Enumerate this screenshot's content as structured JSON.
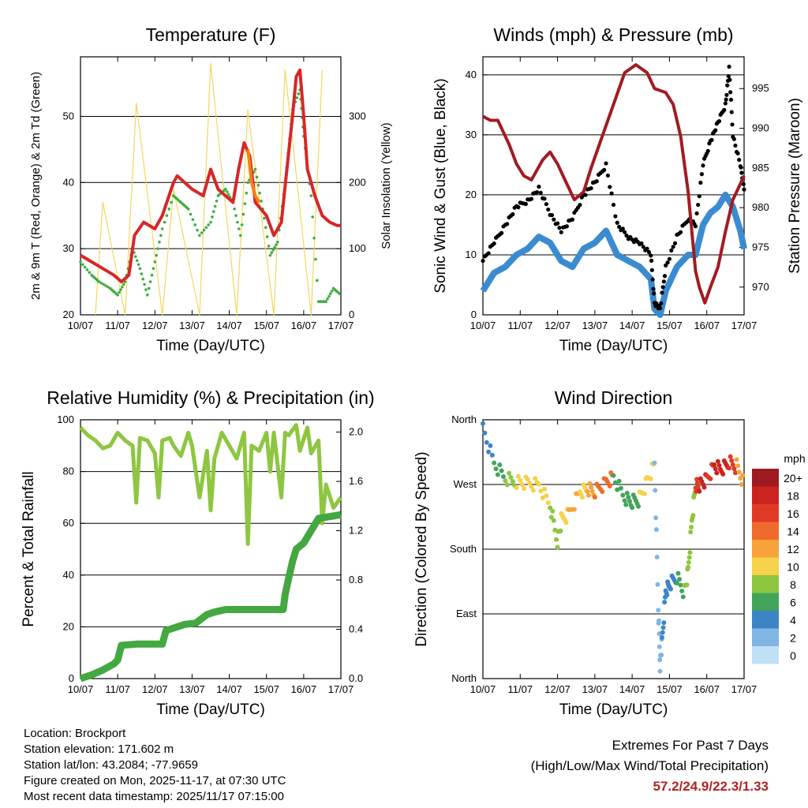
{
  "page": {
    "footer": {
      "location": "Location: Brockport",
      "elevation": "Station elevation: 171.602 m",
      "latlon": "Station lat/lon: 43.2084; -77.9659",
      "created": "Figure created on Mon, 2025-11-17, at 07:30 UTC",
      "recent": "Most recent data timestamp: 2025/11/17 07:15:00"
    },
    "extremes": {
      "title": "Extremes For Past 7 Days",
      "subtitle": "(High/Low/Max Wind/Total Precipitation)",
      "values": "57.2/24.9/22.3/1.33"
    }
  },
  "chart_data": [
    {
      "id": "temperature",
      "type": "line",
      "title": "Temperature (F)",
      "xlabel": "Time (Day/UTC)",
      "ylabel": "2m & 9m T (Red, Orange) & 2m Td (Green)",
      "y2label": "Solar Insolation (Yellow)",
      "xticks": [
        "10/07",
        "11/07",
        "12/07",
        "13/07",
        "14/07",
        "15/07",
        "16/07",
        "17/07"
      ],
      "xlim": [
        0,
        7
      ],
      "ylim": [
        20,
        59
      ],
      "yticks": [
        20,
        30,
        40,
        50
      ],
      "y2lim": [
        0,
        390
      ],
      "y2ticks": [
        0,
        100,
        200,
        300
      ],
      "series": [
        {
          "name": "2m T",
          "color": "#d62728",
          "x": [
            0,
            0.3,
            0.6,
            0.9,
            1.1,
            1.3,
            1.45,
            1.7,
            2.0,
            2.2,
            2.5,
            2.6,
            2.8,
            3.0,
            3.3,
            3.5,
            3.7,
            3.9,
            4.1,
            4.25,
            4.4,
            4.55,
            4.7,
            5.0,
            5.2,
            5.4,
            5.55,
            5.7,
            5.8,
            5.9,
            6.0,
            6.1,
            6.3,
            6.5,
            6.7,
            6.9,
            7.0
          ],
          "y": [
            29,
            28,
            27,
            26,
            25,
            26,
            32,
            34,
            33,
            35,
            40,
            41,
            40,
            39,
            38,
            42,
            39,
            38,
            37,
            42,
            46,
            44,
            37,
            35,
            32,
            34,
            42,
            50,
            56,
            57,
            50,
            42,
            38,
            35,
            34,
            33.5,
            33.5
          ]
        },
        {
          "name": "9m T",
          "color": "#ff7f0e",
          "x": [
            4.5,
            4.6,
            4.7,
            4.8
          ],
          "y": [
            45,
            40,
            38,
            37
          ]
        },
        {
          "name": "2m Td",
          "color": "#3fae3f",
          "x": [
            0,
            0.3,
            0.5,
            0.8,
            1.0,
            1.2,
            1.4,
            1.6,
            1.8,
            2.0,
            2.2,
            2.5,
            2.7,
            2.9,
            3.2,
            3.5,
            3.7,
            3.9,
            4.1,
            4.3,
            4.5,
            4.7,
            4.9,
            5.1,
            5.3,
            5.5,
            5.7,
            5.9,
            6.0,
            6.2,
            6.4,
            6.6,
            6.8,
            7.0
          ],
          "y": [
            28,
            26,
            25,
            24,
            23,
            25,
            30,
            27,
            23,
            28,
            33,
            38,
            37,
            36,
            32,
            34,
            38,
            39,
            37,
            32,
            40,
            42,
            36,
            29,
            31,
            40,
            51,
            54,
            47,
            38,
            22,
            22,
            24,
            23
          ]
        },
        {
          "name": "Solar Insolation",
          "axis": "y2",
          "color": "#f3d75e",
          "x": [
            0.4,
            0.6,
            1.2,
            1.5,
            2.2,
            2.5,
            3.2,
            3.5,
            4.2,
            4.5,
            5.2,
            5.5,
            6.2,
            6.5
          ],
          "y": [
            0,
            170,
            0,
            320,
            0,
            190,
            0,
            380,
            0,
            310,
            0,
            370,
            0,
            370
          ]
        }
      ]
    },
    {
      "id": "winds",
      "type": "scatter",
      "title": "Winds (mph) & Pressure (mb)",
      "xlabel": "Time (Day/UTC)",
      "ylabel": "Sonic Wind & Gust (Blue, Black)",
      "y2label": "Station Pressure (Maroon)",
      "xticks": [
        "10/07",
        "11/07",
        "12/07",
        "13/07",
        "14/07",
        "15/07",
        "16/07",
        "17/07"
      ],
      "xlim": [
        0,
        7
      ],
      "ylim": [
        0,
        43
      ],
      "yticks": [
        0,
        10,
        20,
        30,
        40
      ],
      "y2lim": [
        966.5,
        999
      ],
      "y2ticks": [
        970,
        975,
        980,
        985,
        990,
        995
      ],
      "series": [
        {
          "name": "Sonic Wind",
          "color": "#3b8bd0",
          "x": [
            0,
            0.3,
            0.6,
            0.9,
            1.2,
            1.5,
            1.8,
            2.1,
            2.4,
            2.7,
            3.0,
            3.3,
            3.6,
            3.9,
            4.2,
            4.5,
            4.6,
            4.75,
            4.9,
            5.2,
            5.5,
            5.7,
            5.9,
            6.1,
            6.3,
            6.5,
            6.7,
            6.9,
            7.0
          ],
          "y": [
            4,
            7,
            8,
            10,
            11,
            13,
            12,
            9,
            8,
            11,
            12,
            14,
            10,
            9,
            8,
            6,
            1,
            0,
            4,
            8,
            10,
            10,
            15,
            17,
            18,
            20,
            18,
            14,
            11
          ]
        },
        {
          "name": "Gust",
          "color": "#000000",
          "x": [
            0,
            0.3,
            0.6,
            0.9,
            1.2,
            1.5,
            1.8,
            2.1,
            2.4,
            2.7,
            3.0,
            3.3,
            3.6,
            3.9,
            4.2,
            4.5,
            4.6,
            4.75,
            4.9,
            5.2,
            5.5,
            5.7,
            5.9,
            6.1,
            6.3,
            6.5,
            6.6,
            6.7,
            6.9,
            7.0
          ],
          "y": [
            9,
            12,
            15,
            18,
            19,
            21,
            17,
            14,
            16,
            20,
            22,
            25,
            15,
            13,
            12,
            10,
            2,
            1,
            8,
            13,
            16,
            15,
            25,
            29,
            32,
            35,
            41,
            30,
            25,
            21
          ]
        },
        {
          "name": "Pressure",
          "axis": "y2",
          "color": "#a01c22",
          "x": [
            0,
            0.2,
            0.4,
            0.7,
            0.9,
            1.1,
            1.3,
            1.6,
            1.8,
            2.0,
            2.2,
            2.45,
            2.7,
            2.9,
            3.2,
            3.5,
            3.8,
            4.1,
            4.4,
            4.6,
            4.9,
            5.1,
            5.3,
            5.5,
            5.7,
            5.8,
            5.95,
            6.1,
            6.3,
            6.5,
            6.7,
            6.9,
            7.0
          ],
          "y": [
            991.5,
            991,
            991,
            988,
            985.5,
            984,
            983.5,
            986,
            987,
            985.5,
            983.5,
            981,
            982,
            985,
            989,
            993,
            997,
            998,
            997,
            995,
            994.5,
            993,
            989,
            982,
            972,
            970,
            968,
            970,
            972.5,
            977,
            981,
            983,
            984
          ]
        }
      ]
    },
    {
      "id": "humidity",
      "type": "line",
      "title": "Relative Humidity (%) & Precipitation (in)",
      "xlabel": "Time (Day/UTC)",
      "ylabel": "Percent & Total Rainfall",
      "xticks": [
        "10/07",
        "11/07",
        "12/07",
        "13/07",
        "14/07",
        "15/07",
        "16/07",
        "17/07"
      ],
      "xlim": [
        0,
        7
      ],
      "ylim": [
        0,
        100
      ],
      "yticks": [
        0,
        20,
        40,
        60,
        80,
        100
      ],
      "y2lim": [
        0,
        2.1
      ],
      "y2ticks": [
        "0.0",
        "0.4",
        "0.8",
        "1.2",
        "1.6",
        "2.0"
      ],
      "series": [
        {
          "name": "Relative Humidity",
          "color": "#8ec641",
          "x": [
            0,
            0.2,
            0.4,
            0.6,
            0.8,
            1.0,
            1.2,
            1.4,
            1.5,
            1.6,
            1.8,
            2.0,
            2.1,
            2.2,
            2.4,
            2.5,
            2.7,
            2.9,
            3.0,
            3.2,
            3.4,
            3.5,
            3.6,
            3.8,
            4.0,
            4.2,
            4.4,
            4.5,
            4.6,
            4.8,
            5.0,
            5.1,
            5.2,
            5.4,
            5.5,
            5.6,
            5.8,
            5.9,
            6.1,
            6.2,
            6.4,
            6.5,
            6.6,
            6.8,
            7.0
          ],
          "y": [
            97,
            94,
            92,
            89,
            90,
            95,
            92,
            90,
            68,
            93,
            92,
            87,
            70,
            92,
            93,
            90,
            86,
            95,
            90,
            70,
            88,
            65,
            85,
            95,
            90,
            85,
            95,
            52,
            90,
            88,
            95,
            80,
            95,
            70,
            95,
            94,
            98,
            88,
            97,
            87,
            92,
            60,
            75,
            66,
            70
          ]
        },
        {
          "name": "Total Rainfall",
          "axis": "y2",
          "color": "#43a83f",
          "x": [
            0,
            0.3,
            0.6,
            0.9,
            1.0,
            1.1,
            1.5,
            2.0,
            2.2,
            2.3,
            2.5,
            2.8,
            3.1,
            3.4,
            3.6,
            3.9,
            4.3,
            4.6,
            5.0,
            5.3,
            5.45,
            5.5,
            5.6,
            5.7,
            5.8,
            6.0,
            6.2,
            6.4,
            7.0
          ],
          "y": [
            0.0,
            0.03,
            0.07,
            0.12,
            0.15,
            0.27,
            0.28,
            0.28,
            0.28,
            0.39,
            0.41,
            0.44,
            0.45,
            0.52,
            0.54,
            0.56,
            0.56,
            0.56,
            0.56,
            0.56,
            0.56,
            0.68,
            0.82,
            0.95,
            1.05,
            1.1,
            1.2,
            1.3,
            1.33
          ]
        }
      ]
    },
    {
      "id": "wind_direction",
      "type": "scatter",
      "title": "Wind Direction",
      "xlabel": "Time (Day/UTC)",
      "ylabel": "Direction (Colored By Speed)",
      "xticks": [
        "10/07",
        "11/07",
        "12/07",
        "13/07",
        "14/07",
        "15/07",
        "16/07",
        "17/07"
      ],
      "xlim": [
        0,
        7
      ],
      "ylim": [
        0,
        360
      ],
      "yticks": [
        "North",
        "East",
        "South",
        "West",
        "North"
      ],
      "legend_title": "mph",
      "legend_labels": [
        "20+",
        "18",
        "16",
        "14",
        "12",
        "10",
        "8",
        "6",
        "4",
        "2",
        "0"
      ],
      "legend_colors": [
        "#9e1a1e",
        "#c9221f",
        "#e03a26",
        "#ef6a2c",
        "#f7a23a",
        "#f5d24a",
        "#8cc63e",
        "#42a45a",
        "#3d84c4",
        "#7fb6e3",
        "#bfe0f5"
      ],
      "series": [
        {
          "name": "Direction",
          "x": [
            0,
            0.3,
            0.6,
            0.9,
            1.2,
            1.5,
            1.8,
            2.0,
            2.1,
            2.3,
            2.6,
            2.8,
            3.0,
            3.3,
            3.5,
            3.8,
            4.0,
            4.2,
            4.4,
            4.6,
            4.7,
            4.75,
            4.8,
            4.9,
            5.0,
            5.2,
            5.4,
            5.5,
            5.6,
            5.7,
            5.8,
            6.0,
            6.2,
            6.4,
            6.6,
            6.8,
            7.0
          ],
          "y": [
            350,
            300,
            280,
            275,
            270,
            268,
            240,
            190,
            220,
            230,
            260,
            265,
            262,
            270,
            280,
            250,
            245,
            250,
            275,
            300,
            100,
            20,
            50,
            120,
            130,
            140,
            120,
            150,
            220,
            270,
            270,
            275,
            295,
            290,
            300,
            295,
            272
          ],
          "speed": [
            4,
            4,
            6,
            8,
            10,
            10,
            10,
            8,
            8,
            10,
            12,
            10,
            12,
            14,
            14,
            6,
            6,
            6,
            10,
            10,
            2,
            2,
            2,
            4,
            4,
            4,
            6,
            8,
            8,
            8,
            16,
            18,
            16,
            18,
            18,
            16,
            12
          ]
        }
      ]
    }
  ]
}
